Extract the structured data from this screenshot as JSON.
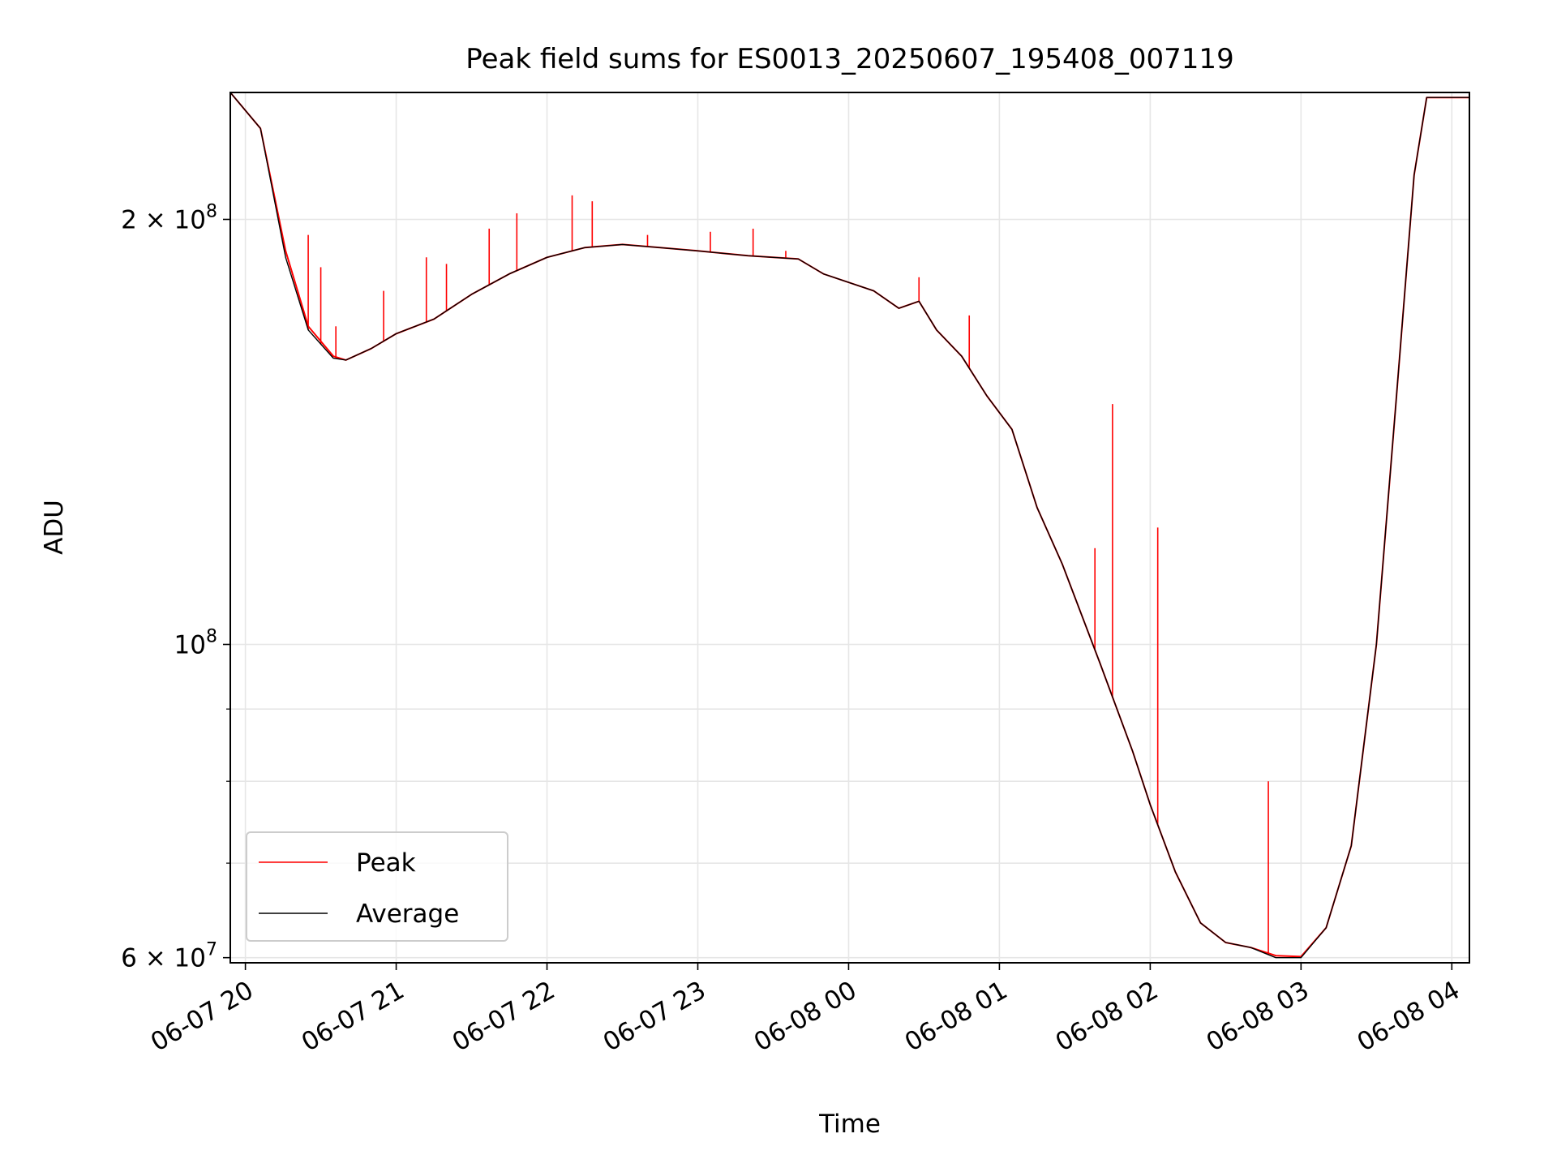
{
  "chart_data": {
    "type": "line",
    "title": "Peak field sums for ES0013_20250607_195408_007119",
    "xlabel": "Time",
    "ylabel": "ADU",
    "y_scale": "log",
    "ylim": [
      59500000,
      246000000
    ],
    "xlim": [
      "2025-06-07 19:54",
      "2025-06-08 04:07"
    ],
    "x_ticks": [
      {
        "t": "2025-06-07 20:00",
        "label": "06-07 20"
      },
      {
        "t": "2025-06-07 21:00",
        "label": "06-07 21"
      },
      {
        "t": "2025-06-07 22:00",
        "label": "06-07 22"
      },
      {
        "t": "2025-06-07 23:00",
        "label": "06-07 23"
      },
      {
        "t": "2025-06-08 00:00",
        "label": "06-08 00"
      },
      {
        "t": "2025-06-08 01:00",
        "label": "06-08 01"
      },
      {
        "t": "2025-06-08 02:00",
        "label": "06-08 02"
      },
      {
        "t": "2025-06-08 03:00",
        "label": "06-08 03"
      },
      {
        "t": "2025-06-08 04:00",
        "label": "06-08 04"
      }
    ],
    "y_major_ticks": [
      {
        "value": 60000000,
        "base": "6 × 10",
        "exp": "7"
      },
      {
        "value": 100000000,
        "base": "10",
        "exp": "8"
      },
      {
        "value": 200000000,
        "base": "2 × 10",
        "exp": "8"
      }
    ],
    "y_minor_ticks": [
      70000000,
      80000000,
      90000000
    ],
    "grid": true,
    "legend_position": "lower-left",
    "series": [
      {
        "name": "Peak",
        "color": "#ff0000",
        "points": [
          [
            "2025-06-07 19:54",
            246000000
          ],
          [
            "2025-06-07 20:06",
            232000000
          ],
          [
            "2025-06-07 20:16",
            190000000
          ],
          [
            "2025-06-07 20:25",
            168000000
          ],
          [
            "2025-06-07 20:35",
            160000000
          ],
          [
            "2025-06-07 20:40",
            159000000
          ],
          [
            "2025-06-07 20:50",
            162000000
          ],
          [
            "2025-06-07 21:00",
            166000000
          ],
          [
            "2025-06-07 21:15",
            170000000
          ],
          [
            "2025-06-07 21:30",
            177000000
          ],
          [
            "2025-06-07 21:45",
            183000000
          ],
          [
            "2025-06-07 22:00",
            188000000
          ],
          [
            "2025-06-07 22:15",
            191000000
          ],
          [
            "2025-06-07 22:30",
            192000000
          ],
          [
            "2025-06-07 22:45",
            191000000
          ],
          [
            "2025-06-07 23:00",
            190000000
          ],
          [
            "2025-06-07 23:20",
            188500000
          ],
          [
            "2025-06-07 23:40",
            187500000
          ],
          [
            "2025-06-07 23:50",
            183000000
          ],
          [
            "2025-06-08 00:10",
            178000000
          ],
          [
            "2025-06-08 00:20",
            173000000
          ],
          [
            "2025-06-08 00:28",
            175000000
          ],
          [
            "2025-06-08 00:35",
            167000000
          ],
          [
            "2025-06-08 00:45",
            160000000
          ],
          [
            "2025-06-08 00:55",
            150000000
          ],
          [
            "2025-06-08 01:05",
            142000000
          ],
          [
            "2025-06-08 01:15",
            125000000
          ],
          [
            "2025-06-08 01:25",
            114000000
          ],
          [
            "2025-06-08 01:40",
            97000000
          ],
          [
            "2025-06-08 01:53",
            84000000
          ],
          [
            "2025-06-08 02:00",
            77000000
          ],
          [
            "2025-06-08 02:10",
            69000000
          ],
          [
            "2025-06-08 02:20",
            63500000
          ],
          [
            "2025-06-08 02:30",
            61500000
          ],
          [
            "2025-06-08 02:40",
            61000000
          ],
          [
            "2025-06-08 02:50",
            60200000
          ],
          [
            "2025-06-08 03:00",
            60100000
          ],
          [
            "2025-06-08 03:10",
            63000000
          ],
          [
            "2025-06-08 03:20",
            72000000
          ],
          [
            "2025-06-08 03:30",
            100000000
          ],
          [
            "2025-06-08 03:38",
            150000000
          ],
          [
            "2025-06-08 03:45",
            215000000
          ],
          [
            "2025-06-08 03:50",
            244000000
          ],
          [
            "2025-06-08 04:07",
            244000000
          ]
        ],
        "spikes": [
          [
            "2025-06-07 20:25",
            195000000
          ],
          [
            "2025-06-07 20:30",
            185000000
          ],
          [
            "2025-06-07 20:36",
            168000000
          ],
          [
            "2025-06-07 20:55",
            178000000
          ],
          [
            "2025-06-07 21:12",
            188000000
          ],
          [
            "2025-06-07 21:20",
            186000000
          ],
          [
            "2025-06-07 21:37",
            197000000
          ],
          [
            "2025-06-07 21:48",
            202000000
          ],
          [
            "2025-06-07 22:10",
            208000000
          ],
          [
            "2025-06-07 22:18",
            206000000
          ],
          [
            "2025-06-07 22:40",
            195000000
          ],
          [
            "2025-06-07 23:05",
            196000000
          ],
          [
            "2025-06-07 23:22",
            197000000
          ],
          [
            "2025-06-07 23:35",
            190000000
          ],
          [
            "2025-06-08 00:28",
            182000000
          ],
          [
            "2025-06-08 00:48",
            171000000
          ],
          [
            "2025-06-08 01:38",
            117000000
          ],
          [
            "2025-06-08 01:45",
            148000000
          ],
          [
            "2025-06-08 02:03",
            121000000
          ],
          [
            "2025-06-08 02:47",
            80000000
          ]
        ]
      },
      {
        "name": "Average",
        "color": "#000000",
        "points": [
          [
            "2025-06-07 19:54",
            246000000
          ],
          [
            "2025-06-07 20:06",
            232000000
          ],
          [
            "2025-06-07 20:16",
            188000000
          ],
          [
            "2025-06-07 20:25",
            167000000
          ],
          [
            "2025-06-07 20:35",
            159500000
          ],
          [
            "2025-06-07 20:40",
            159000000
          ],
          [
            "2025-06-07 20:50",
            162000000
          ],
          [
            "2025-06-07 21:00",
            166000000
          ],
          [
            "2025-06-07 21:15",
            170000000
          ],
          [
            "2025-06-07 21:30",
            177000000
          ],
          [
            "2025-06-07 21:45",
            183000000
          ],
          [
            "2025-06-07 22:00",
            188000000
          ],
          [
            "2025-06-07 22:15",
            191000000
          ],
          [
            "2025-06-07 22:30",
            192000000
          ],
          [
            "2025-06-07 22:45",
            191000000
          ],
          [
            "2025-06-07 23:00",
            190000000
          ],
          [
            "2025-06-07 23:20",
            188500000
          ],
          [
            "2025-06-07 23:40",
            187500000
          ],
          [
            "2025-06-07 23:50",
            183000000
          ],
          [
            "2025-06-08 00:10",
            178000000
          ],
          [
            "2025-06-08 00:20",
            173000000
          ],
          [
            "2025-06-08 00:28",
            175000000
          ],
          [
            "2025-06-08 00:35",
            167000000
          ],
          [
            "2025-06-08 00:45",
            160000000
          ],
          [
            "2025-06-08 00:55",
            150000000
          ],
          [
            "2025-06-08 01:05",
            142000000
          ],
          [
            "2025-06-08 01:15",
            125000000
          ],
          [
            "2025-06-08 01:25",
            114000000
          ],
          [
            "2025-06-08 01:40",
            97000000
          ],
          [
            "2025-06-08 01:53",
            84000000
          ],
          [
            "2025-06-08 02:00",
            77000000
          ],
          [
            "2025-06-08 02:10",
            69000000
          ],
          [
            "2025-06-08 02:20",
            63500000
          ],
          [
            "2025-06-08 02:30",
            61500000
          ],
          [
            "2025-06-08 02:40",
            61000000
          ],
          [
            "2025-06-08 02:50",
            60000000
          ],
          [
            "2025-06-08 03:00",
            60000000
          ],
          [
            "2025-06-08 03:10",
            63000000
          ],
          [
            "2025-06-08 03:20",
            72000000
          ],
          [
            "2025-06-08 03:30",
            100000000
          ],
          [
            "2025-06-08 03:38",
            150000000
          ],
          [
            "2025-06-08 03:45",
            215000000
          ],
          [
            "2025-06-08 03:50",
            244000000
          ],
          [
            "2025-06-08 04:07",
            244000000
          ]
        ]
      }
    ]
  }
}
